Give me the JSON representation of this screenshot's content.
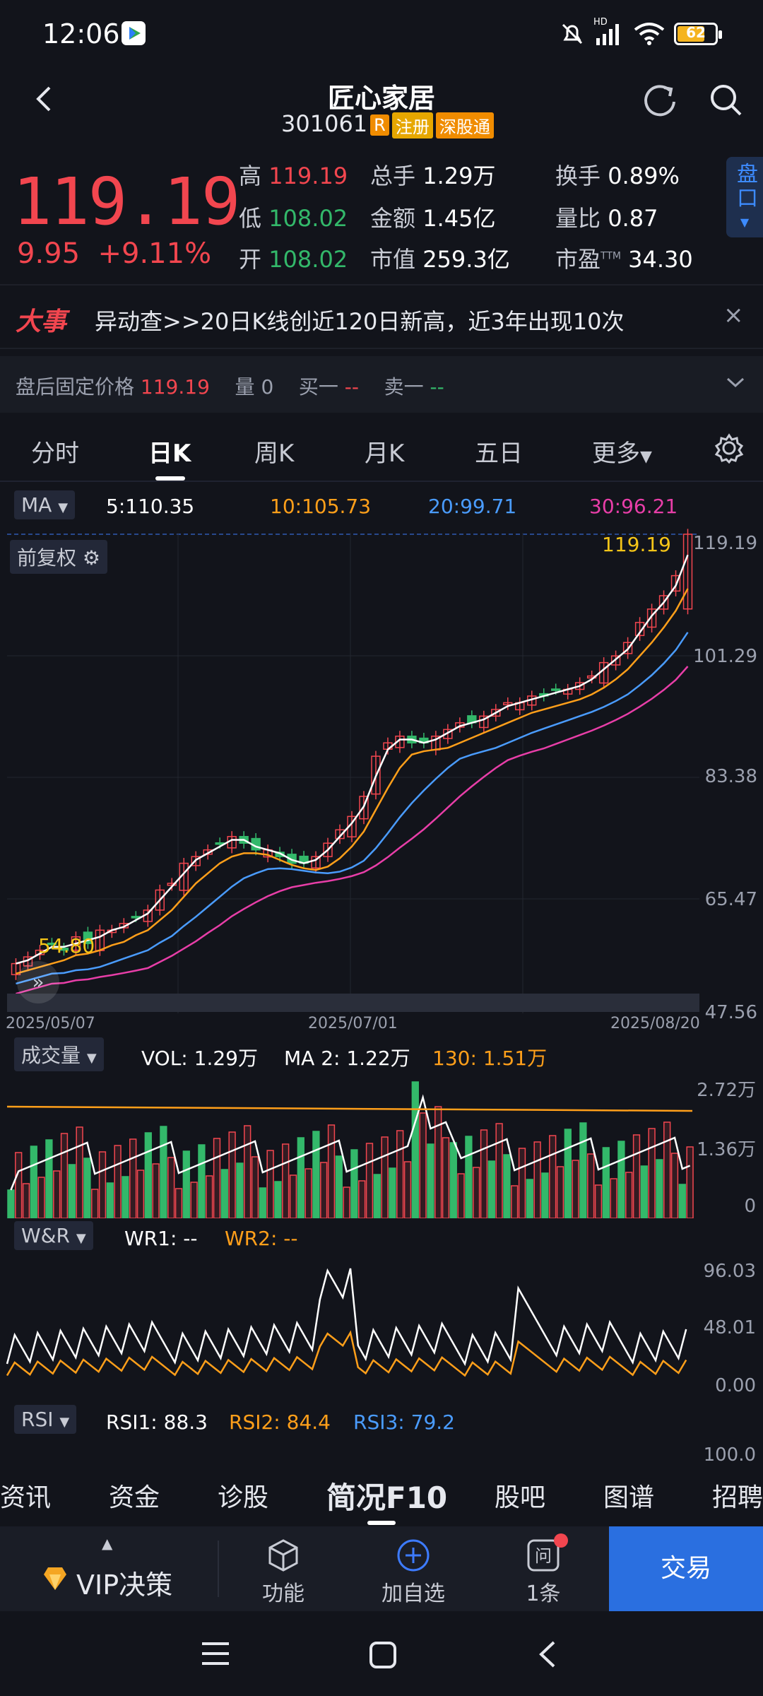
{
  "status": {
    "time": "12:06",
    "battery": "62",
    "signal_label": "HD"
  },
  "header": {
    "title": "匠心家居",
    "code": "301061",
    "tags": [
      "R",
      "注册",
      "深股通"
    ]
  },
  "quote": {
    "price": "119.19",
    "change": "9.95",
    "change_pct": "+9.11%",
    "high_label": "高",
    "high": "119.19",
    "low_label": "低",
    "low": "108.02",
    "open_label": "开",
    "open": "108.02",
    "vol_label": "总手",
    "vol": "1.29万",
    "amt_label": "金额",
    "amt": "1.45亿",
    "mcap_label": "市值",
    "mcap": "259.3亿",
    "turn_label": "换手",
    "turn": "0.89%",
    "vr_label": "量比",
    "vr": "0.87",
    "pe_label": "市盈",
    "pe_sup": "TTM",
    "pe": "34.30",
    "side_btn": "盘口"
  },
  "news": {
    "tag": "大事",
    "text": "异动查>>20日K线创近120日新高，近3年出现10次"
  },
  "after_hours": {
    "label": "盘后固定价格",
    "price": "119.19",
    "vol_label": "量",
    "vol": "0",
    "buy_label": "买一",
    "buy": "--",
    "sell_label": "卖一",
    "sell": "--"
  },
  "tabs": [
    "分时",
    "日K",
    "周K",
    "月K",
    "五日",
    "更多"
  ],
  "ma": {
    "label": "MA",
    "ma5": "5:110.35",
    "ma10": "10:105.73",
    "ma20": "20:99.71",
    "ma30": "30:96.21",
    "adj": "前复权"
  },
  "kchart": {
    "y_ticks": [
      "119.19",
      "101.29",
      "83.38",
      "65.47",
      "47.56"
    ],
    "x_ticks": [
      "2025/05/07",
      "2025/07/01",
      "2025/08/20"
    ],
    "high_label": "119.19",
    "low_label": "54.80"
  },
  "volume": {
    "label": "成交量",
    "vol": "VOL: 1.29万",
    "ma2": "MA 2: 1.22万",
    "ma130": "130: 1.51万",
    "y_ticks": [
      "2.72万",
      "1.36万",
      "0"
    ]
  },
  "wr": {
    "label": "W&R",
    "wr1": "WR1: --",
    "wr2": "WR2: --",
    "y_ticks": [
      "96.03",
      "48.01",
      "0.00"
    ]
  },
  "rsi": {
    "label": "RSI",
    "rsi1": "RSI1: 88.3",
    "rsi2": "RSI2: 84.4",
    "rsi3": "RSI3: 79.2",
    "y_tick": "100.0"
  },
  "bottom_tabs": [
    "资讯",
    "资金",
    "诊股",
    "简况F10",
    "股吧",
    "图谱",
    "招聘"
  ],
  "actions": {
    "vip": "VIP决策",
    "func": "功能",
    "add": "加自选",
    "ask": "1条",
    "trade": "交易"
  },
  "colors": {
    "up": "#f2464f",
    "down": "#33b86a",
    "ma5": "#ffffff",
    "ma10": "#ff9f1a",
    "ma20": "#4a9cff",
    "ma30": "#e83ea8",
    "accent": "#2a6fe0"
  },
  "chart_data": {
    "type": "candlestick",
    "x": [
      "2025/05/07",
      "2025/07/01",
      "2025/08/20"
    ],
    "close_series": [
      55,
      56,
      57,
      58,
      57,
      59,
      58,
      60,
      60,
      61,
      62,
      63,
      66,
      67,
      70,
      71,
      72,
      73,
      74,
      73,
      72,
      72,
      71,
      70,
      70,
      71,
      73,
      75,
      77,
      80,
      86,
      88,
      89,
      88,
      88,
      89,
      90,
      91,
      91,
      92,
      93,
      94,
      94,
      95,
      95,
      96,
      96,
      97,
      98,
      100,
      101,
      103,
      106,
      108,
      110,
      113,
      119.19
    ],
    "ylim": [
      47.56,
      119.19
    ]
  }
}
